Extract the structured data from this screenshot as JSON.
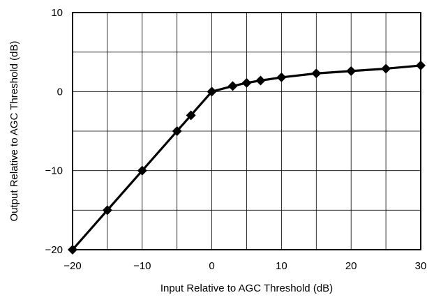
{
  "chart_data": {
    "type": "line",
    "title": "",
    "xlabel": "Input Relative to AGC Threshold (dB)",
    "ylabel": "Output Relative to AGC Threshold (dB)",
    "xlim": [
      -20,
      30
    ],
    "ylim": [
      -20,
      10
    ],
    "xticks": [
      -20,
      -10,
      0,
      10,
      20,
      30
    ],
    "xtick_labels": [
      "−20",
      "−10",
      "0",
      "10",
      "20",
      "30"
    ],
    "yticks": [
      -20,
      -10,
      0,
      10
    ],
    "ytick_labels": [
      "−20",
      "−10",
      "0",
      "10"
    ],
    "x_grid": [
      -20,
      -15,
      -10,
      -5,
      0,
      5,
      10,
      15,
      20,
      25,
      30
    ],
    "y_grid": [
      -20,
      -15,
      -10,
      -5,
      0,
      5,
      10
    ],
    "grid": true,
    "legend": "none",
    "series": [
      {
        "color": "#000000",
        "marker": "diamond",
        "x": [
          -20,
          -15,
          -10,
          -5,
          -3,
          0,
          3,
          5,
          7,
          10,
          15,
          20,
          25,
          30
        ],
        "y": [
          -20,
          -15,
          -10,
          -5,
          -3,
          0,
          0.7,
          1.1,
          1.4,
          1.8,
          2.3,
          2.6,
          2.9,
          3.3
        ]
      }
    ]
  }
}
